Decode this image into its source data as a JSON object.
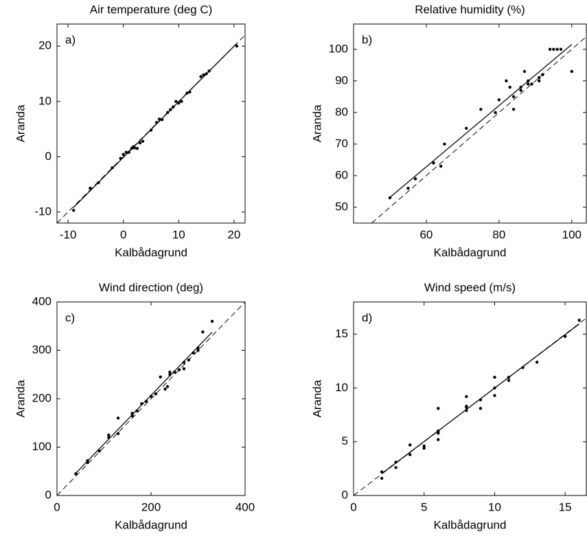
{
  "chart_data": [
    {
      "type": "scatter",
      "title": "Air temperature (deg C)",
      "panel_label": "a)",
      "xlabel": "Kalbådagrund",
      "ylabel": "Aranda",
      "color": "#000000",
      "x": [
        -9,
        -6,
        -4.5,
        -2,
        -0.5,
        0,
        0.5,
        1,
        1.5,
        1.8,
        2,
        2.5,
        3,
        3.5,
        5,
        6,
        6.5,
        7,
        8,
        8.5,
        9,
        9.5,
        10,
        10.5,
        11.5,
        12,
        14,
        14.5,
        15,
        15.5,
        20.5
      ],
      "values": [
        -9.7,
        -5.7,
        -4.7,
        -2,
        -0.3,
        0.4,
        0.8,
        0.8,
        1.5,
        1.8,
        1.6,
        1.5,
        2.5,
        2.8,
        4.8,
        6.2,
        6.8,
        6.7,
        8,
        8.5,
        9,
        10,
        9.7,
        10,
        11.5,
        11.7,
        14.5,
        14.8,
        15,
        15.5,
        20
      ],
      "xlim": [
        -12,
        22
      ],
      "ylim": [
        -12,
        24
      ],
      "xticks": [
        -10,
        0,
        10,
        20
      ],
      "yticks": [
        -10,
        0,
        10,
        20
      ]
    },
    {
      "type": "scatter",
      "title": "Relative humidity (%)",
      "panel_label": "b)",
      "xlabel": "Kalbådagrund",
      "ylabel": "Aranda",
      "color": "#000000",
      "x": [
        50,
        55,
        57,
        62,
        64,
        65,
        71,
        75,
        79,
        80,
        82,
        83,
        84,
        84,
        86,
        86,
        87,
        88,
        88,
        89,
        91,
        91,
        92,
        94,
        95,
        96,
        97,
        100
      ],
      "values": [
        53,
        56,
        59,
        64,
        63,
        70,
        75,
        81,
        80,
        84,
        90,
        88,
        81,
        85,
        87,
        88,
        93,
        89,
        90,
        89,
        90,
        91,
        92,
        100,
        100,
        100,
        100,
        93
      ],
      "xlim": [
        40,
        104
      ],
      "ylim": [
        45,
        108
      ],
      "xticks": [
        60,
        80,
        100
      ],
      "yticks": [
        50,
        60,
        70,
        80,
        90,
        100
      ]
    },
    {
      "type": "scatter",
      "title": "Wind direction (deg)",
      "panel_label": "c)",
      "xlabel": "Kalbådagrund",
      "ylabel": "Aranda",
      "color": "#000000",
      "x": [
        40,
        65,
        65,
        90,
        110,
        110,
        130,
        130,
        160,
        160,
        170,
        180,
        190,
        200,
        210,
        220,
        230,
        235,
        240,
        240,
        250,
        260,
        270,
        270,
        280,
        290,
        300,
        300,
        310,
        330
      ],
      "values": [
        45,
        68,
        72,
        92,
        120,
        125,
        128,
        160,
        165,
        170,
        175,
        190,
        195,
        205,
        210,
        245,
        220,
        225,
        250,
        255,
        255,
        260,
        262,
        275,
        280,
        295,
        300,
        305,
        338,
        360
      ],
      "xlim": [
        0,
        400
      ],
      "ylim": [
        0,
        400
      ],
      "xticks": [
        0,
        200,
        400
      ],
      "yticks": [
        0,
        100,
        200,
        300,
        400
      ]
    },
    {
      "type": "scatter",
      "title": "Wind speed (m/s)",
      "panel_label": "d)",
      "xlabel": "Kalbådagrund",
      "ylabel": "Aranda",
      "color": "#000000",
      "x": [
        2,
        2,
        3,
        3,
        4,
        4,
        5,
        5,
        6,
        6,
        6,
        6,
        8,
        8,
        8,
        8,
        9,
        9,
        10,
        10,
        10,
        11,
        11,
        12,
        13,
        15,
        16
      ],
      "values": [
        2.2,
        1.6,
        3.1,
        2.6,
        3.8,
        4.7,
        4.6,
        4.4,
        6,
        5.8,
        5.2,
        8.1,
        7.9,
        8.2,
        8.3,
        9.2,
        8.9,
        8.1,
        9.3,
        10,
        11,
        11,
        10.7,
        11.9,
        12.4,
        14.8,
        16.3
      ],
      "xlim": [
        0,
        16.5
      ],
      "ylim": [
        0,
        18
      ],
      "xticks": [
        0,
        5,
        10,
        15
      ],
      "yticks": [
        0,
        5,
        10,
        15
      ]
    }
  ]
}
